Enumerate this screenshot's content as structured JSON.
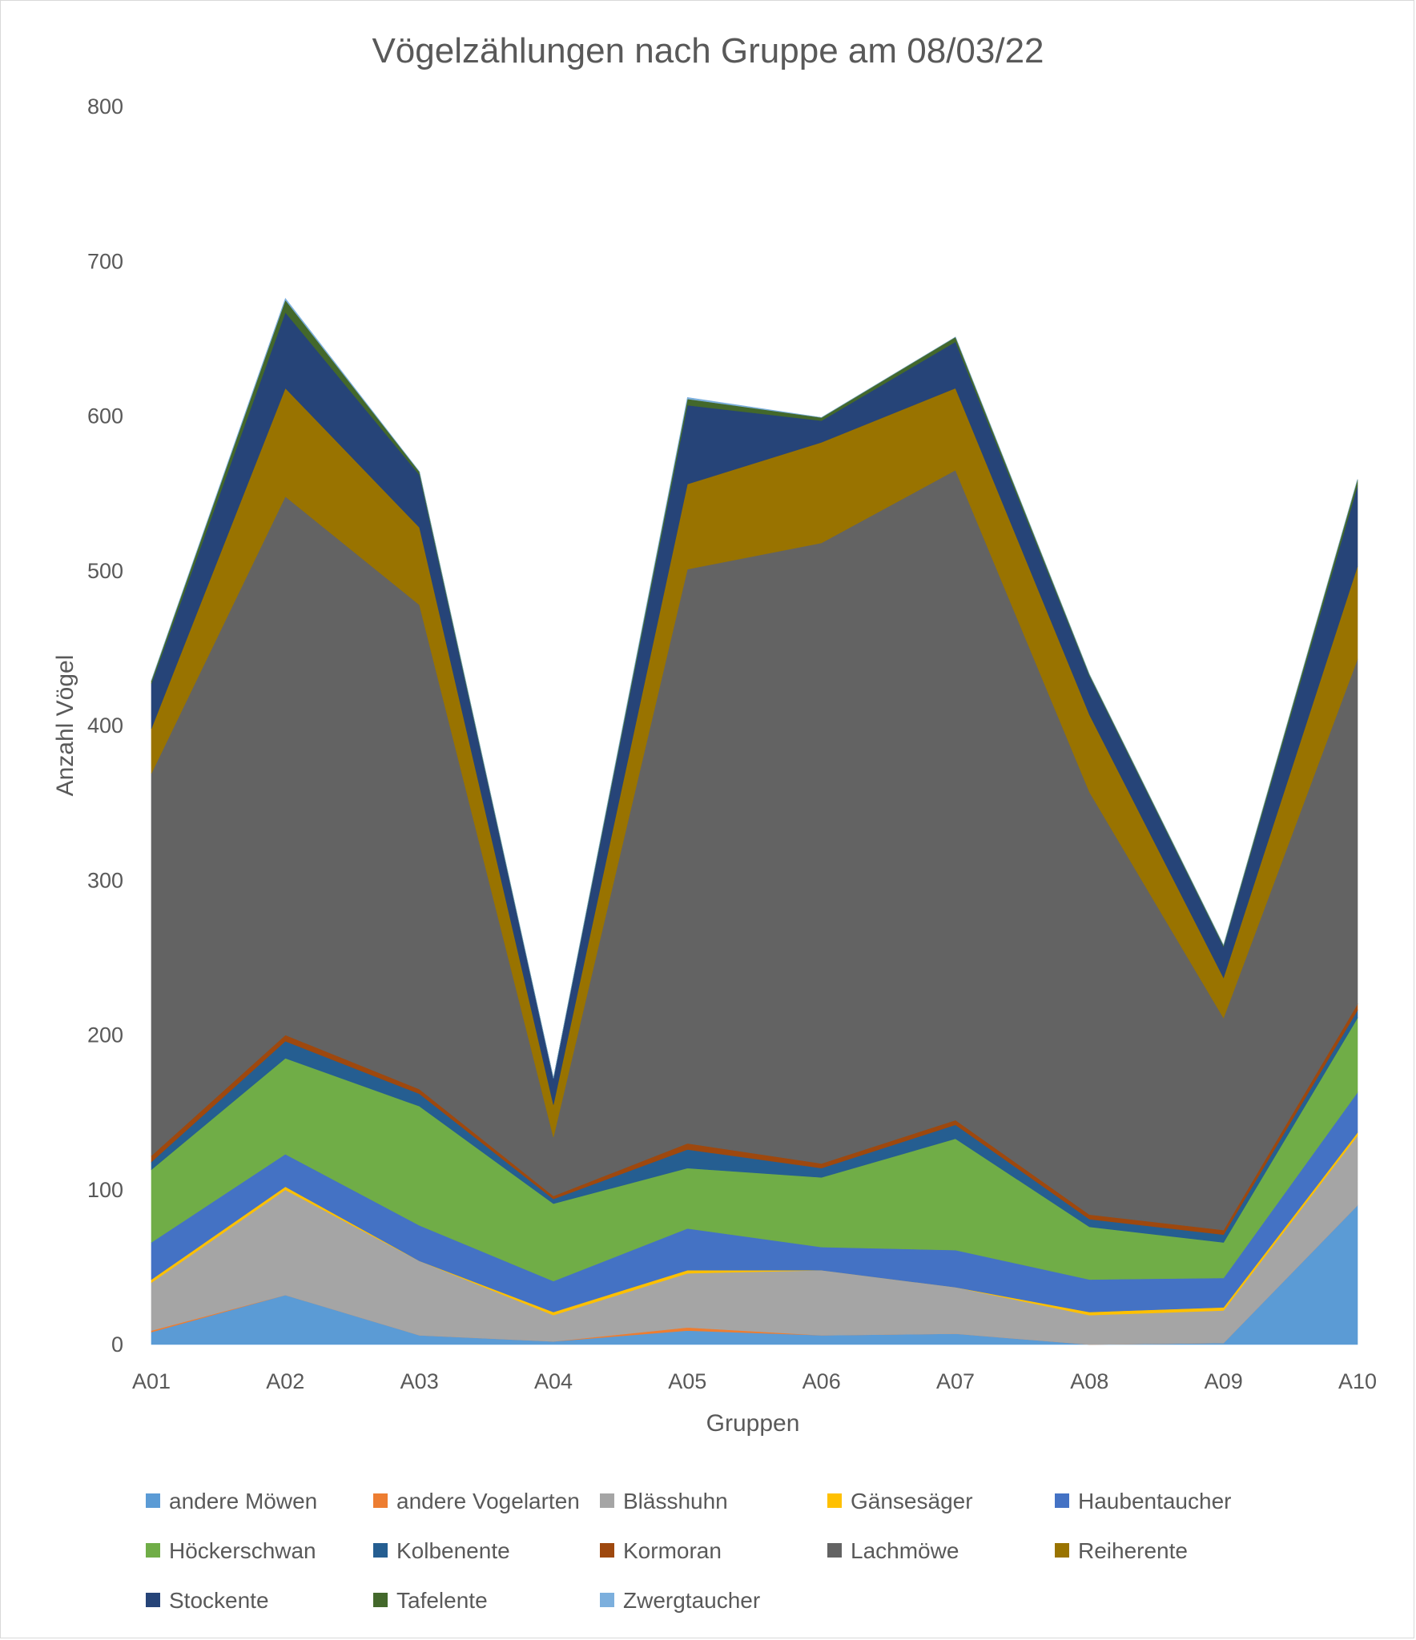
{
  "chart_data": {
    "type": "area",
    "stacked": true,
    "title": "Vögelzählungen nach Gruppe am 08/03/22",
    "xlabel": "Gruppen",
    "ylabel": "Anzahl Vögel",
    "ylim": [
      0,
      800
    ],
    "yticks": [
      0,
      100,
      200,
      300,
      400,
      500,
      600,
      700,
      800
    ],
    "grid": false,
    "legend_position": "bottom",
    "categories": [
      "A01",
      "A02",
      "A03",
      "A04",
      "A05",
      "A06",
      "A07",
      "A08",
      "A09",
      "A10"
    ],
    "series": [
      {
        "name": "andere Möwen",
        "color": "#5b9bd5",
        "values": [
          8,
          32,
          6,
          2,
          9,
          6,
          7,
          0,
          1,
          90
        ]
      },
      {
        "name": "andere Vogelarten",
        "color": "#ed7d31",
        "values": [
          1,
          0,
          0,
          0,
          2,
          0,
          0,
          0,
          0,
          0
        ]
      },
      {
        "name": "Blässhuhn",
        "color": "#a5a5a5",
        "values": [
          31,
          68,
          48,
          17,
          35,
          42,
          30,
          19,
          21,
          45
        ]
      },
      {
        "name": "Gänsesäger",
        "color": "#ffc000",
        "values": [
          2,
          2,
          0,
          2,
          2,
          0,
          0,
          2,
          2,
          2
        ]
      },
      {
        "name": "Haubentaucher",
        "color": "#4472c4",
        "values": [
          24,
          21,
          23,
          20,
          27,
          15,
          24,
          21,
          19,
          26
        ]
      },
      {
        "name": "Höckerschwan",
        "color": "#70ad47",
        "values": [
          47,
          62,
          77,
          50,
          39,
          45,
          72,
          34,
          23,
          48
        ]
      },
      {
        "name": "Kolbenente",
        "color": "#255e91",
        "values": [
          5,
          11,
          8,
          3,
          12,
          6,
          9,
          5,
          5,
          5
        ]
      },
      {
        "name": "Kormoran",
        "color": "#9e480e",
        "values": [
          4,
          4,
          3,
          2,
          4,
          3,
          3,
          3,
          3,
          4
        ]
      },
      {
        "name": "Lachmöwe",
        "color": "#636363",
        "values": [
          247,
          348,
          313,
          38,
          371,
          401,
          420,
          273,
          137,
          223
        ]
      },
      {
        "name": "Reiherente",
        "color": "#997300",
        "values": [
          29,
          70,
          50,
          21,
          55,
          65,
          53,
          50,
          26,
          60
        ]
      },
      {
        "name": "Stockente",
        "color": "#264478",
        "values": [
          29,
          49,
          34,
          17,
          51,
          14,
          30,
          25,
          20,
          52
        ]
      },
      {
        "name": "Tafelente",
        "color": "#43682b",
        "values": [
          2,
          8,
          2,
          0,
          4,
          2,
          3,
          1,
          1,
          4
        ]
      },
      {
        "name": "Zwergtaucher",
        "color": "#7cafdd",
        "values": [
          0,
          1,
          0,
          0,
          1,
          0,
          0,
          0,
          0,
          0
        ]
      }
    ]
  }
}
